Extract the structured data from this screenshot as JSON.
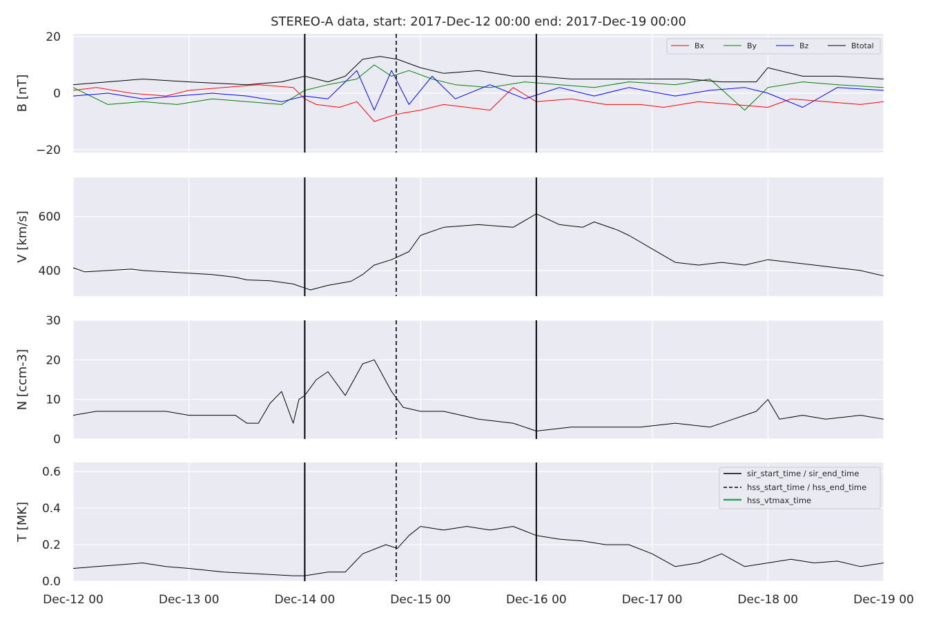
{
  "figure": {
    "title": "STEREO-A data, start: 2017-Dec-12 00:00  end: 2017-Dec-19 00:00"
  },
  "colors": {
    "panel_bg": "#eaeaf2",
    "grid": "#ffffff",
    "text": "#262626",
    "Bx": "#ff0000",
    "By": "#008000",
    "Bz": "#0000ff",
    "Btotal": "#000000",
    "hss_vtmax": "#2ca25f"
  },
  "chart_data": [
    {
      "type": "line",
      "ylabel": "B [nT]",
      "ylim": [
        -21,
        21
      ],
      "yticks": [
        "20",
        "0",
        "−20"
      ],
      "xlim_days": [
        0,
        7
      ],
      "legend_position": "top-right",
      "series": [
        {
          "name": "Bx",
          "color": "#ff0000",
          "x": [
            0,
            0.2,
            0.5,
            0.8,
            1.0,
            1.3,
            1.6,
            1.9,
            2.0,
            2.1,
            2.3,
            2.45,
            2.6,
            2.75,
            2.85,
            3.0,
            3.2,
            3.4,
            3.6,
            3.8,
            4.0,
            4.3,
            4.6,
            4.9,
            5.1,
            5.4,
            5.7,
            6.0,
            6.2,
            6.5,
            6.8,
            7.0
          ],
          "y": [
            1,
            2,
            0,
            -1,
            1,
            2,
            3,
            2,
            -2,
            -4,
            -5,
            -3,
            -10,
            -8,
            -7,
            -6,
            -4,
            -5,
            -6,
            2,
            -3,
            -2,
            -4,
            -4,
            -5,
            -3,
            -4,
            -5,
            -2,
            -3,
            -4,
            -3
          ]
        },
        {
          "name": "By",
          "color": "#008000",
          "x": [
            0,
            0.3,
            0.6,
            0.9,
            1.2,
            1.5,
            1.8,
            2.0,
            2.2,
            2.45,
            2.6,
            2.75,
            2.9,
            3.1,
            3.3,
            3.6,
            3.9,
            4.2,
            4.5,
            4.8,
            5.2,
            5.5,
            5.8,
            6.0,
            6.3,
            6.6,
            7.0
          ],
          "y": [
            2,
            -4,
            -3,
            -4,
            -2,
            -3,
            -4,
            1,
            3,
            5,
            10,
            6,
            8,
            5,
            3,
            2,
            4,
            3,
            2,
            4,
            3,
            5,
            -6,
            2,
            4,
            3,
            2
          ]
        },
        {
          "name": "Bz",
          "color": "#0000ff",
          "x": [
            0,
            0.3,
            0.6,
            0.9,
            1.2,
            1.5,
            1.8,
            2.0,
            2.2,
            2.45,
            2.6,
            2.75,
            2.9,
            3.1,
            3.3,
            3.6,
            3.9,
            4.2,
            4.5,
            4.8,
            5.2,
            5.5,
            5.8,
            6.0,
            6.3,
            6.6,
            7.0
          ],
          "y": [
            -1,
            0,
            -2,
            -1,
            0,
            -1,
            -3,
            -1,
            -2,
            8,
            -6,
            8,
            -4,
            6,
            -2,
            3,
            -2,
            2,
            -1,
            2,
            -1,
            1,
            2,
            0,
            -5,
            2,
            1
          ]
        },
        {
          "name": "Btotal",
          "color": "#000000",
          "x": [
            0,
            0.3,
            0.6,
            1.0,
            1.5,
            1.8,
            2.0,
            2.2,
            2.35,
            2.5,
            2.65,
            2.8,
            3.0,
            3.2,
            3.5,
            3.8,
            4.0,
            4.3,
            4.6,
            5.0,
            5.3,
            5.6,
            5.9,
            6.0,
            6.3,
            6.6,
            7.0
          ],
          "y": [
            3,
            4,
            5,
            4,
            3,
            4,
            6,
            4,
            6,
            12,
            13,
            12,
            9,
            7,
            8,
            6,
            6,
            5,
            5,
            5,
            5,
            4,
            4,
            9,
            6,
            6,
            5
          ]
        }
      ]
    },
    {
      "type": "line",
      "ylabel": "V [km/s]",
      "ylim": [
        305,
        745
      ],
      "yticks": [
        "400",
        "600"
      ],
      "xlim_days": [
        0,
        7
      ],
      "series": [
        {
          "name": "",
          "color": "#000000",
          "x": [
            0,
            0.1,
            0.3,
            0.5,
            0.6,
            0.8,
            1.0,
            1.2,
            1.4,
            1.5,
            1.7,
            1.9,
            2.0,
            2.05,
            2.2,
            2.4,
            2.5,
            2.6,
            2.75,
            2.9,
            3.0,
            3.2,
            3.5,
            3.8,
            4.0,
            4.2,
            4.4,
            4.5,
            4.7,
            4.8,
            5.0,
            5.2,
            5.4,
            5.6,
            5.8,
            6.0,
            6.2,
            6.4,
            6.6,
            6.8,
            7.0
          ],
          "y": [
            410,
            395,
            400,
            405,
            400,
            395,
            390,
            385,
            375,
            365,
            362,
            350,
            335,
            328,
            345,
            360,
            385,
            420,
            440,
            470,
            530,
            560,
            570,
            560,
            610,
            570,
            560,
            580,
            550,
            530,
            480,
            430,
            420,
            430,
            420,
            440,
            430,
            420,
            410,
            400,
            380
          ]
        }
      ]
    },
    {
      "type": "line",
      "ylabel": "N [ccm-3]",
      "ylim": [
        0,
        30
      ],
      "yticks": [
        "0",
        "10",
        "20",
        "30"
      ],
      "xlim_days": [
        0,
        7
      ],
      "series": [
        {
          "name": "",
          "color": "#000000",
          "x": [
            0,
            0.2,
            0.4,
            0.6,
            0.8,
            1.0,
            1.2,
            1.4,
            1.5,
            1.6,
            1.7,
            1.8,
            1.9,
            1.95,
            2.0,
            2.1,
            2.2,
            2.35,
            2.5,
            2.6,
            2.75,
            2.85,
            3.0,
            3.2,
            3.5,
            3.8,
            4.0,
            4.3,
            4.6,
            4.9,
            5.2,
            5.5,
            5.7,
            5.9,
            6.0,
            6.1,
            6.3,
            6.5,
            6.8,
            7.0
          ],
          "y": [
            6,
            7,
            7,
            7,
            7,
            6,
            6,
            6,
            4,
            4,
            9,
            12,
            4,
            10,
            11,
            15,
            17,
            11,
            19,
            20,
            12,
            8,
            7,
            7,
            5,
            4,
            2,
            3,
            3,
            3,
            4,
            3,
            5,
            7,
            10,
            5,
            6,
            5,
            6,
            5
          ]
        }
      ]
    },
    {
      "type": "line",
      "ylabel": "T [MK]",
      "ylim": [
        0,
        0.65
      ],
      "yticks": [
        "0.0",
        "0.2",
        "0.4",
        "0.6"
      ],
      "xlim_days": [
        0,
        7
      ],
      "legend_position": "top-right",
      "series": [
        {
          "name": "",
          "color": "#000000",
          "x": [
            0,
            0.2,
            0.4,
            0.6,
            0.8,
            1.0,
            1.3,
            1.6,
            1.9,
            2.0,
            2.2,
            2.35,
            2.5,
            2.7,
            2.8,
            2.9,
            3.0,
            3.2,
            3.4,
            3.6,
            3.8,
            4.0,
            4.2,
            4.4,
            4.6,
            4.8,
            5.0,
            5.2,
            5.4,
            5.6,
            5.8,
            6.0,
            6.2,
            6.4,
            6.6,
            6.8,
            7.0
          ],
          "y": [
            0.07,
            0.08,
            0.09,
            0.1,
            0.08,
            0.07,
            0.05,
            0.04,
            0.03,
            0.03,
            0.05,
            0.05,
            0.15,
            0.2,
            0.18,
            0.25,
            0.3,
            0.28,
            0.3,
            0.28,
            0.3,
            0.25,
            0.23,
            0.22,
            0.2,
            0.2,
            0.15,
            0.08,
            0.1,
            0.15,
            0.08,
            0.1,
            0.12,
            0.1,
            0.11,
            0.08,
            0.1
          ]
        }
      ]
    }
  ],
  "x_axis": {
    "tick_days": [
      0,
      1,
      2,
      3,
      4,
      5,
      6,
      7
    ],
    "tick_labels": [
      "Dec-12 00",
      "Dec-13 00",
      "Dec-14 00",
      "Dec-15 00",
      "Dec-16 00",
      "Dec-17 00",
      "Dec-18 00",
      "Dec-19 00"
    ]
  },
  "event_markers": {
    "sir_start_day": 2.0,
    "hss_start_day": 2.79,
    "sir_end_day": 4.0
  },
  "legend_B": [
    "Bx",
    "By",
    "Bz",
    "Btotal"
  ],
  "legend_T": {
    "solid": "sir_start_time / sir_end_time",
    "dashed": "hss_start_time / hss_end_time",
    "green": "hss_vtmax_time"
  }
}
